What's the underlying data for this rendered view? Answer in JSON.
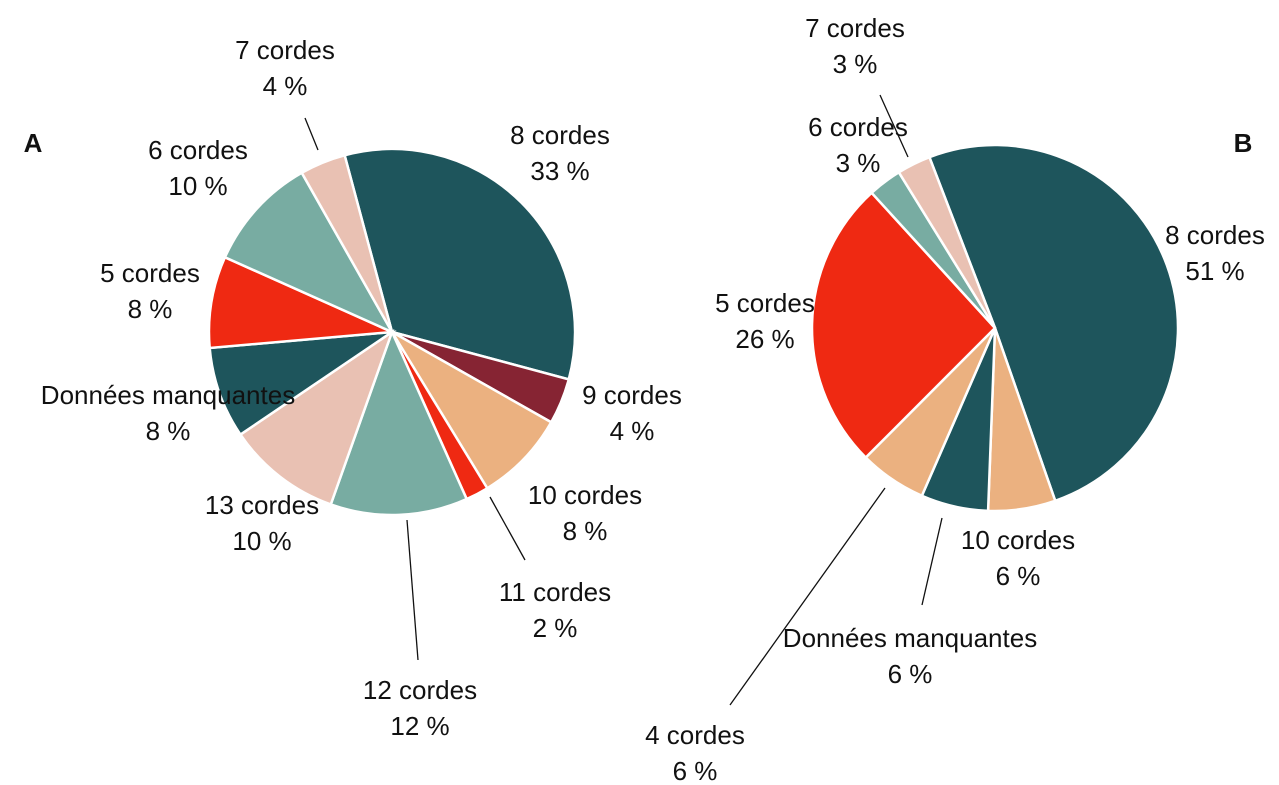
{
  "chart_data": [
    {
      "type": "pie",
      "title": "A",
      "categories": [
        "8 cordes",
        "9 cordes",
        "10 cordes",
        "11 cordes",
        "12 cordes",
        "13 cordes",
        "Données manquantes",
        "5 cordes",
        "6 cordes",
        "7 cordes"
      ],
      "values": [
        33,
        4,
        8,
        2,
        12,
        10,
        8,
        8,
        10,
        4
      ],
      "value_labels": [
        "33 %",
        "4 %",
        "8 %",
        "2 %",
        "12 %",
        "10 %",
        "8 %",
        "8 %",
        "10 %",
        "4 %"
      ],
      "colors": [
        "#1e555c",
        "#862433",
        "#ebb180",
        "#ef2912",
        "#78aca2",
        "#e9c1b3",
        "#1e555c",
        "#ef2912",
        "#78aca2",
        "#e9c1b3"
      ]
    },
    {
      "type": "pie",
      "title": "B",
      "categories": [
        "8 cordes",
        "10 cordes",
        "Données manquantes",
        "4 cordes",
        "5 cordes",
        "6 cordes",
        "7 cordes"
      ],
      "values": [
        51,
        6,
        6,
        6,
        26,
        3,
        3
      ],
      "value_labels": [
        "51 %",
        "6 %",
        "6 %",
        "6 %",
        "26 %",
        "3 %",
        "3 %"
      ],
      "colors": [
        "#1e555c",
        "#ebb180",
        "#1e555c",
        "#ebb180",
        "#ef2912",
        "#78aca2",
        "#e9c1b3"
      ]
    }
  ]
}
